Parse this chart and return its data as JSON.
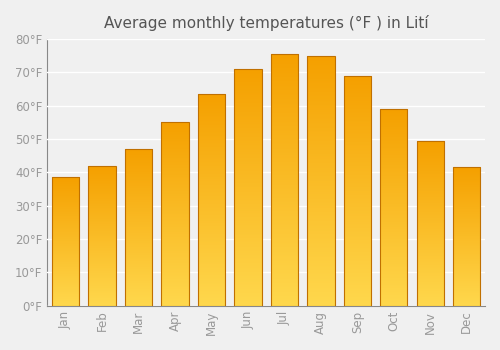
{
  "title": "Average monthly temperatures (°F ) in Lití",
  "months": [
    "Jan",
    "Feb",
    "Mar",
    "Apr",
    "May",
    "Jun",
    "Jul",
    "Aug",
    "Sep",
    "Oct",
    "Nov",
    "Dec"
  ],
  "values": [
    38.5,
    42.0,
    47.0,
    55.0,
    63.5,
    71.0,
    75.5,
    75.0,
    69.0,
    59.0,
    49.5,
    41.5
  ],
  "bar_color_dark": "#F5A000",
  "bar_color_mid": "#FFB700",
  "bar_color_light": "#FFD84D",
  "bar_edge_color": "#C07000",
  "background_color": "#f0f0f0",
  "ylim": [
    0,
    80
  ],
  "yticks": [
    0,
    10,
    20,
    30,
    40,
    50,
    60,
    70,
    80
  ],
  "grid_color": "#ffffff",
  "tick_label_color": "#999999",
  "title_color": "#555555",
  "title_fontsize": 11,
  "tick_fontsize": 8.5,
  "bar_width": 0.75
}
